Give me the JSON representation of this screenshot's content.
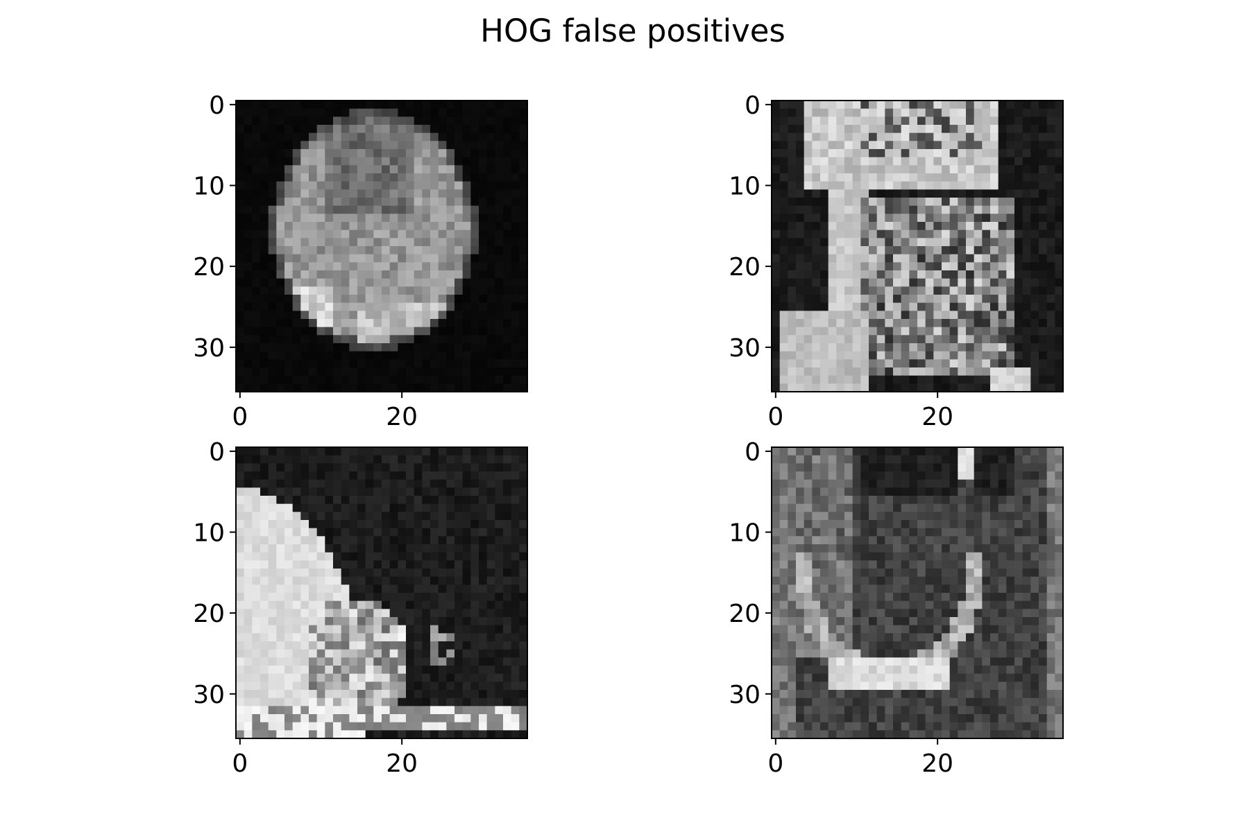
{
  "title": "HOG false positives",
  "chart_data": {
    "type": "heatmap",
    "title": "HOG false positives",
    "colormap": "grayscale",
    "image_size": [
      36,
      36
    ],
    "panels": [
      {
        "id": "top-left",
        "content": "rounded moon-like blob, dark background",
        "xticks": [
          0,
          20
        ],
        "yticks": [
          0,
          10,
          20,
          30
        ],
        "xlim": [
          -0.5,
          35.5
        ],
        "ylim": [
          35.5,
          -0.5
        ],
        "grid": false
      },
      {
        "id": "top-right",
        "content": "bright irregular structure in upper region, textured column below",
        "xticks": [
          0,
          20
        ],
        "yticks": [
          0,
          10,
          20,
          30
        ],
        "xlim": [
          -0.5,
          35.5
        ],
        "ylim": [
          35.5,
          -0.5
        ],
        "grid": false
      },
      {
        "id": "bottom-left",
        "content": "bright wedge entering from left edge, noisy dark background",
        "xticks": [
          0,
          20
        ],
        "yticks": [
          0,
          10,
          20,
          30
        ],
        "xlim": [
          -0.5,
          35.5
        ],
        "ylim": [
          35.5,
          -0.5
        ],
        "grid": false
      },
      {
        "id": "bottom-right",
        "content": "curved U-shaped bright band, textured gray",
        "xticks": [
          0,
          20
        ],
        "yticks": [
          0,
          10,
          20,
          30
        ],
        "xlim": [
          -0.5,
          35.5
        ],
        "ylim": [
          35.5,
          -0.5
        ],
        "grid": false
      }
    ]
  }
}
